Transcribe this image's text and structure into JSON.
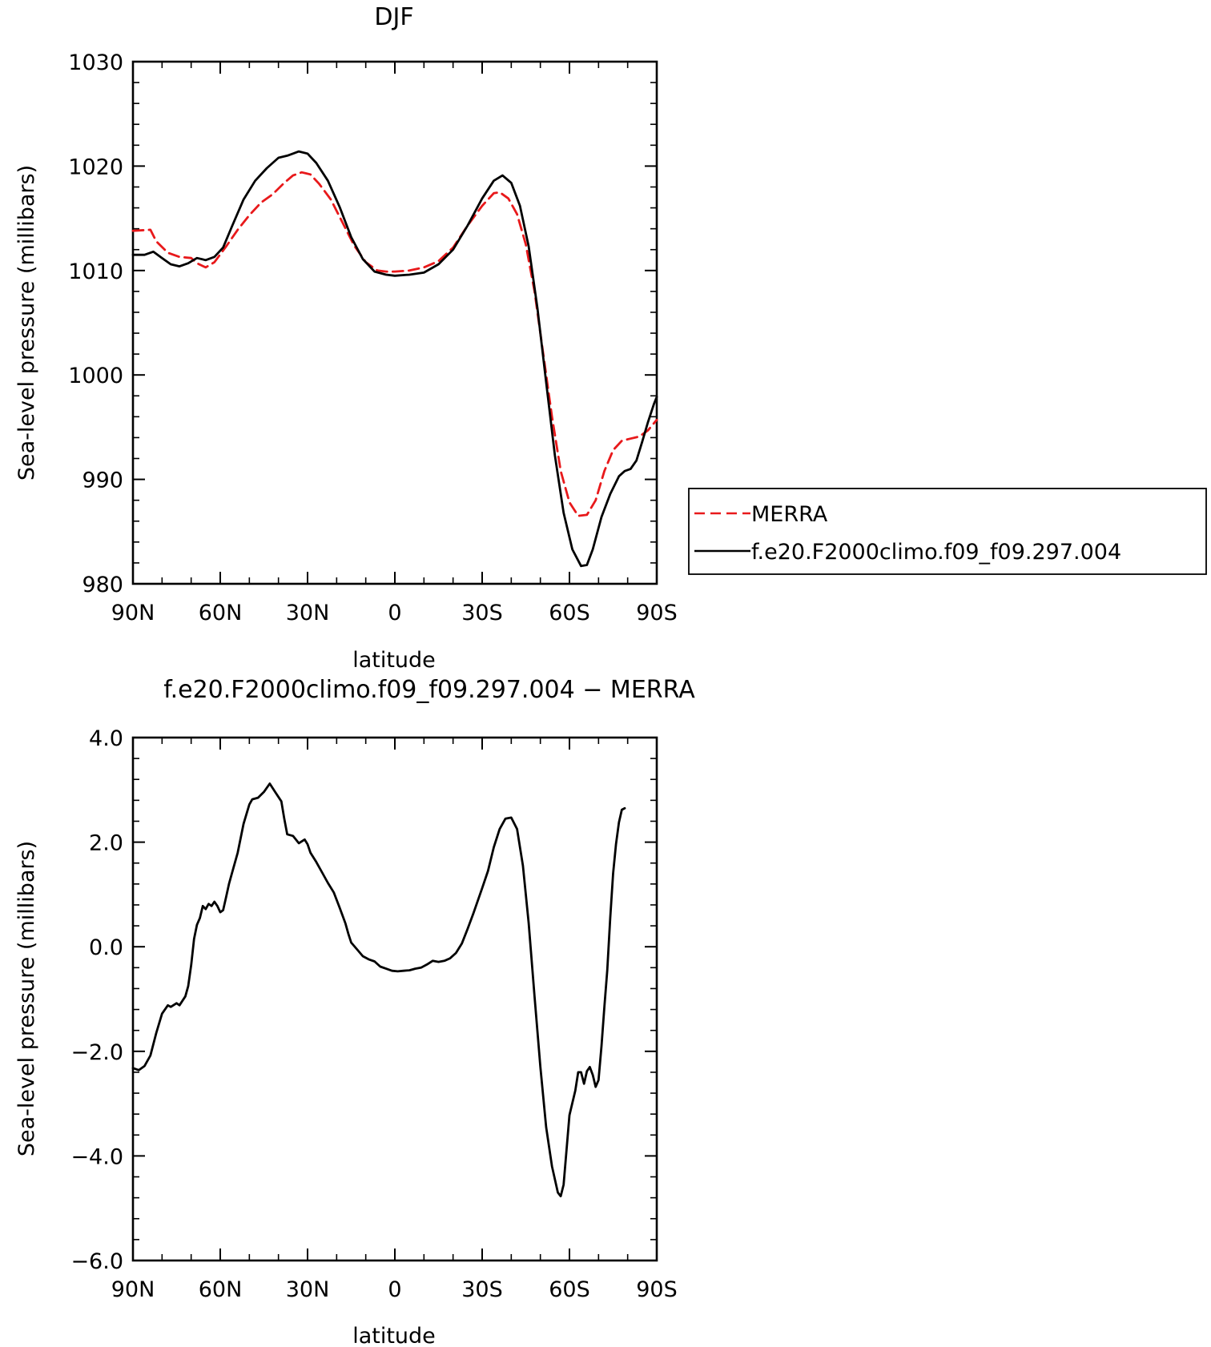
{
  "chart_data": [
    {
      "type": "line",
      "title": "DJF",
      "xlabel": "latitude",
      "ylabel": "Sea-level pressure (millibars)",
      "xlim": [
        90,
        -90
      ],
      "ylim": [
        980,
        1030
      ],
      "xticks": [
        {
          "value": 90,
          "label": "90N"
        },
        {
          "value": 60,
          "label": "60N"
        },
        {
          "value": 30,
          "label": "30N"
        },
        {
          "value": 0,
          "label": "0"
        },
        {
          "value": -30,
          "label": "30S"
        },
        {
          "value": -60,
          "label": "60S"
        },
        {
          "value": -90,
          "label": "90S"
        }
      ],
      "yticks": [
        {
          "value": 980,
          "label": "980"
        },
        {
          "value": 990,
          "label": "990"
        },
        {
          "value": 1000,
          "label": "1000"
        },
        {
          "value": 1010,
          "label": "1010"
        },
        {
          "value": 1020,
          "label": "1020"
        },
        {
          "value": 1030,
          "label": "1030"
        }
      ],
      "legend": {
        "placement": "right",
        "entries": [
          "MERRA",
          "f.e20.F2000climo.f09_f09.297.004"
        ]
      },
      "series": [
        {
          "name": "MERRA",
          "color": "#e8191b",
          "dash": "dashed",
          "points": [
            [
              90,
              1013.8
            ],
            [
              84,
              1013.9
            ],
            [
              82,
              1012.8
            ],
            [
              78,
              1011.7
            ],
            [
              74,
              1011.3
            ],
            [
              70,
              1011.2
            ],
            [
              68,
              1010.7
            ],
            [
              65,
              1010.3
            ],
            [
              62,
              1010.8
            ],
            [
              58,
              1012.3
            ],
            [
              54,
              1013.9
            ],
            [
              50,
              1015.3
            ],
            [
              46,
              1016.5
            ],
            [
              42,
              1017.3
            ],
            [
              38,
              1018.4
            ],
            [
              35,
              1019.1
            ],
            [
              32,
              1019.4
            ],
            [
              29,
              1019.2
            ],
            [
              26,
              1018.3
            ],
            [
              22,
              1016.8
            ],
            [
              18,
              1014.6
            ],
            [
              14,
              1012.4
            ],
            [
              10,
              1010.8
            ],
            [
              6,
              1010.0
            ],
            [
              3,
              1009.9
            ],
            [
              0,
              1009.9
            ],
            [
              -5,
              1010.0
            ],
            [
              -10,
              1010.3
            ],
            [
              -15,
              1010.9
            ],
            [
              -20,
              1012.2
            ],
            [
              -25,
              1014.3
            ],
            [
              -30,
              1016.2
            ],
            [
              -34,
              1017.4
            ],
            [
              -36,
              1017.5
            ],
            [
              -39,
              1016.9
            ],
            [
              -42,
              1015.4
            ],
            [
              -45,
              1012.5
            ],
            [
              -48,
              1008.0
            ],
            [
              -51,
              1002.0
            ],
            [
              -54,
              996.0
            ],
            [
              -57,
              990.8
            ],
            [
              -60,
              987.8
            ],
            [
              -63,
              986.5
            ],
            [
              -66,
              986.6
            ],
            [
              -69,
              988.0
            ],
            [
              -72,
              990.8
            ],
            [
              -75,
              992.8
            ],
            [
              -78,
              993.7
            ],
            [
              -81,
              993.9
            ],
            [
              -84,
              994.1
            ],
            [
              -87,
              994.7
            ],
            [
              -90,
              995.7
            ]
          ]
        },
        {
          "name": "f.e20.F2000climo.f09_f09.297.004",
          "color": "#000000",
          "dash": "solid",
          "points": [
            [
              90,
              1011.5
            ],
            [
              86,
              1011.5
            ],
            [
              83,
              1011.8
            ],
            [
              80,
              1011.2
            ],
            [
              77,
              1010.6
            ],
            [
              74,
              1010.4
            ],
            [
              71,
              1010.7
            ],
            [
              68,
              1011.2
            ],
            [
              65,
              1011.0
            ],
            [
              62,
              1011.3
            ],
            [
              59,
              1012.2
            ],
            [
              56,
              1014.2
            ],
            [
              52,
              1016.8
            ],
            [
              48,
              1018.6
            ],
            [
              44,
              1019.8
            ],
            [
              40,
              1020.8
            ],
            [
              37,
              1021.0
            ],
            [
              35,
              1021.2
            ],
            [
              33,
              1021.4
            ],
            [
              30,
              1021.2
            ],
            [
              27,
              1020.3
            ],
            [
              23,
              1018.6
            ],
            [
              19,
              1016.1
            ],
            [
              15,
              1013.2
            ],
            [
              11,
              1011.1
            ],
            [
              7,
              1009.9
            ],
            [
              3,
              1009.6
            ],
            [
              0,
              1009.5
            ],
            [
              -5,
              1009.6
            ],
            [
              -10,
              1009.8
            ],
            [
              -15,
              1010.6
            ],
            [
              -20,
              1012.0
            ],
            [
              -25,
              1014.3
            ],
            [
              -30,
              1016.9
            ],
            [
              -34,
              1018.6
            ],
            [
              -37,
              1019.1
            ],
            [
              -40,
              1018.4
            ],
            [
              -43,
              1016.2
            ],
            [
              -46,
              1012.3
            ],
            [
              -49,
              1006.4
            ],
            [
              -52,
              999.3
            ],
            [
              -55,
              992.3
            ],
            [
              -58,
              986.8
            ],
            [
              -61,
              983.3
            ],
            [
              -64,
              981.7
            ],
            [
              -66,
              981.8
            ],
            [
              -68,
              983.3
            ],
            [
              -71,
              986.4
            ],
            [
              -74,
              988.6
            ],
            [
              -77,
              990.3
            ],
            [
              -79,
              990.8
            ],
            [
              -81,
              991.0
            ],
            [
              -83,
              991.8
            ],
            [
              -85,
              993.6
            ],
            [
              -87,
              995.5
            ],
            [
              -89,
              997.2
            ],
            [
              -90,
              997.9
            ]
          ]
        }
      ]
    },
    {
      "type": "line",
      "title": "f.e20.F2000climo.f09_f09.297.004 − MERRA",
      "xlabel": "latitude",
      "ylabel": "Sea-level pressure (millibars)",
      "xlim": [
        90,
        -90
      ],
      "ylim": [
        -6,
        4
      ],
      "xticks": [
        {
          "value": 90,
          "label": "90N"
        },
        {
          "value": 60,
          "label": "60N"
        },
        {
          "value": 30,
          "label": "30N"
        },
        {
          "value": 0,
          "label": "0"
        },
        {
          "value": -30,
          "label": "30S"
        },
        {
          "value": -60,
          "label": "60S"
        },
        {
          "value": -90,
          "label": "90S"
        }
      ],
      "yticks": [
        {
          "value": -6,
          "label": "−6.0"
        },
        {
          "value": -4,
          "label": "−4.0"
        },
        {
          "value": -2,
          "label": "−2.0"
        },
        {
          "value": 0,
          "label": "0.0"
        },
        {
          "value": 2,
          "label": "2.0"
        },
        {
          "value": 4,
          "label": "4.0"
        }
      ],
      "series": [
        {
          "color": "#000000",
          "dash": "solid",
          "points": [
            [
              90,
              -2.32
            ],
            [
              88,
              -2.36
            ],
            [
              86,
              -2.28
            ],
            [
              84,
              -2.08
            ],
            [
              82,
              -1.65
            ],
            [
              80,
              -1.28
            ],
            [
              78,
              -1.12
            ],
            [
              77,
              -1.15
            ],
            [
              75,
              -1.08
            ],
            [
              74,
              -1.12
            ],
            [
              72,
              -0.95
            ],
            [
              71,
              -0.75
            ],
            [
              70,
              -0.35
            ],
            [
              69,
              0.15
            ],
            [
              68,
              0.42
            ],
            [
              67,
              0.55
            ],
            [
              66,
              0.78
            ],
            [
              65,
              0.72
            ],
            [
              64,
              0.82
            ],
            [
              63,
              0.78
            ],
            [
              62,
              0.86
            ],
            [
              61,
              0.78
            ],
            [
              60,
              0.66
            ],
            [
              59,
              0.7
            ],
            [
              58,
              0.95
            ],
            [
              57,
              1.2
            ],
            [
              56,
              1.4
            ],
            [
              54,
              1.8
            ],
            [
              52,
              2.35
            ],
            [
              50,
              2.72
            ],
            [
              49,
              2.82
            ],
            [
              47,
              2.85
            ],
            [
              45,
              2.96
            ],
            [
              43,
              3.12
            ],
            [
              41,
              2.95
            ],
            [
              39,
              2.78
            ],
            [
              38,
              2.45
            ],
            [
              37,
              2.15
            ],
            [
              35,
              2.12
            ],
            [
              33,
              1.98
            ],
            [
              31,
              2.05
            ],
            [
              30,
              1.96
            ],
            [
              29,
              1.8
            ],
            [
              27,
              1.62
            ],
            [
              25,
              1.42
            ],
            [
              23,
              1.22
            ],
            [
              21,
              1.04
            ],
            [
              19,
              0.75
            ],
            [
              17,
              0.45
            ],
            [
              16,
              0.25
            ],
            [
              15,
              0.08
            ],
            [
              13,
              -0.05
            ],
            [
              11,
              -0.18
            ],
            [
              9,
              -0.24
            ],
            [
              7,
              -0.28
            ],
            [
              5,
              -0.38
            ],
            [
              3,
              -0.42
            ],
            [
              1,
              -0.46
            ],
            [
              -1,
              -0.47
            ],
            [
              -3,
              -0.46
            ],
            [
              -5,
              -0.45
            ],
            [
              -7,
              -0.42
            ],
            [
              -9,
              -0.4
            ],
            [
              -11,
              -0.34
            ],
            [
              -13,
              -0.27
            ],
            [
              -15,
              -0.29
            ],
            [
              -17,
              -0.27
            ],
            [
              -19,
              -0.22
            ],
            [
              -21,
              -0.12
            ],
            [
              -23,
              0.06
            ],
            [
              -25,
              0.34
            ],
            [
              -27,
              0.64
            ],
            [
              -30,
              1.12
            ],
            [
              -32,
              1.45
            ],
            [
              -34,
              1.9
            ],
            [
              -36,
              2.25
            ],
            [
              -38,
              2.45
            ],
            [
              -40,
              2.47
            ],
            [
              -42,
              2.25
            ],
            [
              -44,
              1.55
            ],
            [
              -46,
              0.45
            ],
            [
              -48,
              -0.95
            ],
            [
              -50,
              -2.3
            ],
            [
              -52,
              -3.45
            ],
            [
              -54,
              -4.2
            ],
            [
              -56,
              -4.7
            ],
            [
              -57,
              -4.77
            ],
            [
              -58,
              -4.55
            ],
            [
              -60,
              -3.22
            ],
            [
              -62,
              -2.75
            ],
            [
              -63,
              -2.4
            ],
            [
              -64,
              -2.4
            ],
            [
              -65,
              -2.62
            ],
            [
              -66,
              -2.38
            ],
            [
              -67,
              -2.3
            ],
            [
              -68,
              -2.45
            ],
            [
              -69,
              -2.68
            ],
            [
              -70,
              -2.55
            ],
            [
              -71,
              -1.9
            ],
            [
              -72,
              -1.15
            ],
            [
              -73,
              -0.45
            ],
            [
              -74,
              0.55
            ],
            [
              -75,
              1.4
            ],
            [
              -76,
              1.96
            ],
            [
              -77,
              2.38
            ],
            [
              -78,
              2.62
            ],
            [
              -79,
              2.65
            ]
          ]
        }
      ]
    }
  ]
}
